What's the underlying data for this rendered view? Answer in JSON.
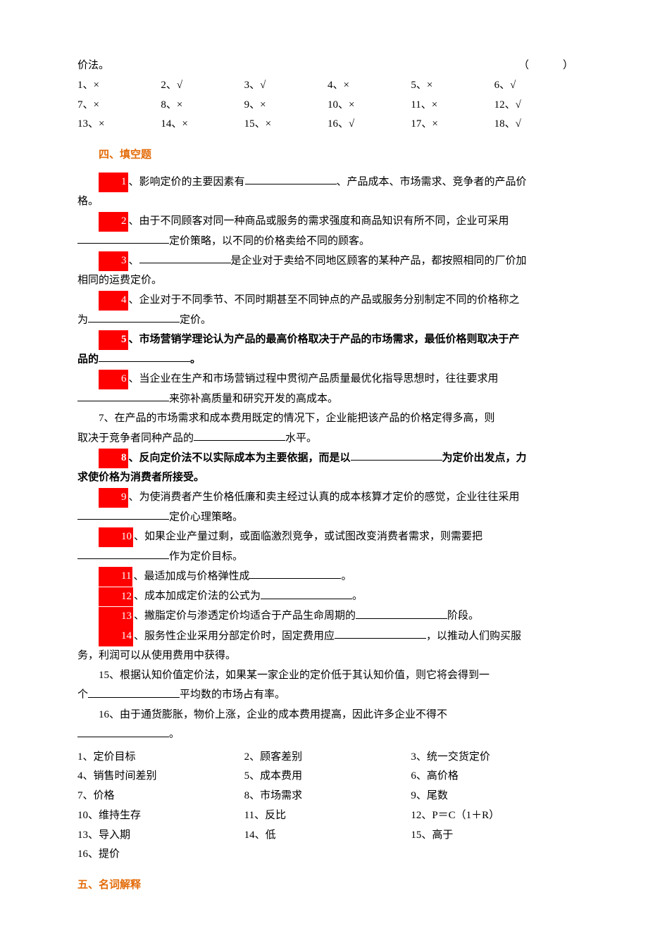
{
  "top": {
    "line1": "价法。",
    "paren": "（　　）"
  },
  "tf_answers": [
    "1、×",
    "2、√",
    "3、√",
    "4、×",
    "5、×",
    "6、√",
    "7、×",
    "8、×",
    "9、×",
    "10、×",
    "11、×",
    "12、√",
    "13、×",
    "14、×",
    "15、×",
    "16、√",
    "17、×",
    "18、√"
  ],
  "sec4_title": "四、填空题",
  "q1": {
    "num": "1",
    "a": "、影响定价的主要因素有",
    "b": "、产品成本、市场需求、竞争者的产品价"
  },
  "q1b": "格。",
  "q2": {
    "num": "2",
    "a": "、由于不同顾客对同一种商品或服务的需求强度和商品知识有所不同，企业可采用"
  },
  "q2b": "定价策略，以不同的价格卖给不同的顾客。",
  "q3": {
    "num": "3",
    "a": "、",
    "b": "是企业对于卖给不同地区顾客的某种产品，都按照相同的厂价加"
  },
  "q3b": "相同的运费定价。",
  "q4": {
    "num": "4",
    "a": "、企业对于不同季节、不同时期甚至不同钟点的产品或服务分别制定不同的价格称之"
  },
  "q4b_pre": "为",
  "q4b_post": "定价。",
  "q5": {
    "num": "5",
    "a": "、市场营销学理论认为产品的最高价格取决于产品的市场需求，最低价格则取决于产"
  },
  "q5b_pre": "品的",
  "q5b_post": "。",
  "q6": {
    "num": "6",
    "a": "、当企业在生产和市场营销过程中贯彻产品质量最优化指导思想时，往往要求用"
  },
  "q6b": "来弥补高质量和研究开发的高成本。",
  "q7a": "7、在产品的市场需求和成本费用既定的情况下，企业能把该产品的价格定得多高，则",
  "q7b_pre": "取决于竞争者同种产品的",
  "q7b_post": "水平。",
  "q8": {
    "num": "8",
    "a": "、反向定价法不以实际成本为主要依据，而是以",
    "b": "为定价出发点，力"
  },
  "q8b": "求使价格为消费者所接受。",
  "q9": {
    "num": "9",
    "a": "、为使消费者产生价格低廉和卖主经过认真的成本核算才定价的感觉，企业往往采用"
  },
  "q9b": "定价心理策略。",
  "q10": {
    "num": "10",
    "a": "、如果企业产量过剩，或面临激烈竞争，或试图改变消费者需求，则需要把"
  },
  "q10b": "作为定价目标。",
  "q11": {
    "num": "11",
    "a": "、最适加成与价格弹性成",
    "b": "。"
  },
  "q12": {
    "num": "12",
    "a": "、成本加成定价法的公式为",
    "b": "。"
  },
  "q13": {
    "num": "13",
    "a": "、撇脂定价与渗透定价均适合于产品生命周期的",
    "b": "阶段。"
  },
  "q14": {
    "num": "14",
    "a": "、服务性企业采用分部定价时，固定费用应",
    "b": "，以推动人们购买服"
  },
  "q14b": "务，利润可以从使用费用中获得。",
  "q15a": "15、根据认知价值定价法，如果某一家企业的定价低于其认知价值，则它将会得到一",
  "q15b_pre": "个",
  "q15b_post": "平均数的市场占有率。",
  "q16a": "16、由于通货膨胀，物价上涨，企业的成本费用提高，因此许多企业不得不",
  "q16b": "。",
  "fill_answers": [
    "1、定价目标",
    "2、顾客差别",
    "3、统一交货定价",
    "4、销售时间差别",
    "5、成本费用",
    "6、高价格",
    "7、价格",
    "8、市场需求",
    "9、尾数",
    "10、维持生存",
    "11、反比",
    "12、P＝C（1＋R）",
    "13、导入期",
    "14、低",
    "15、高于",
    "16、提价",
    "",
    ""
  ],
  "sec5_title": "五、名词解释"
}
